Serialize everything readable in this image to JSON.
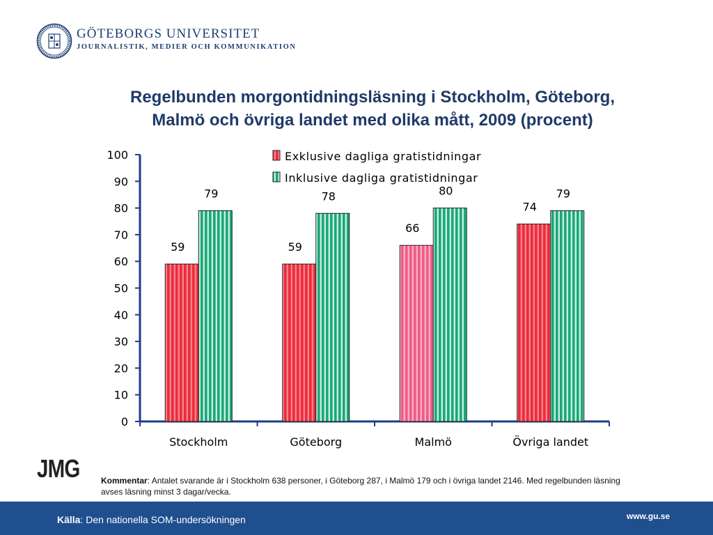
{
  "header": {
    "university": "GÖTEBORGS UNIVERSITET",
    "department": "JOURNALISTIK, MEDIER OCH KOMMUNIKATION",
    "logo_icon": "university-seal-icon"
  },
  "title_line1": "Regelbunden morgontidningsläsning i Stockholm, Göteborg,",
  "title_line2": "Malmö och övriga landet med olika mått, 2009 (procent)",
  "chart_data": {
    "type": "bar",
    "categories": [
      "Stockholm",
      "Göteborg",
      "Malmö",
      "Övriga landet"
    ],
    "series": [
      {
        "name": "Exklusive dagliga gratistidningar",
        "values": [
          59,
          59,
          66,
          74
        ],
        "color": "#ee2a3a"
      },
      {
        "name": "Inklusive dagliga gratistidningar",
        "values": [
          79,
          78,
          80,
          79
        ],
        "color": "#1aa87a"
      }
    ],
    "title": "",
    "xlabel": "",
    "ylabel": "",
    "ylim": [
      0,
      100
    ],
    "yticks": [
      "0",
      "10",
      "20",
      "30",
      "40",
      "50",
      "60",
      "70",
      "80",
      "90",
      "100"
    ],
    "grid": false,
    "legend_position": "top-right",
    "data_labels": true
  },
  "jmg_logo": "JMG",
  "comment": {
    "label": "Kommentar",
    "text": ": Antalet svarande är i Stockholm 638 personer, i Göteborg 287, i Malmö 179 och i övriga landet 2146. Med regelbunden läsning avses läsning minst 3 dagar/vecka."
  },
  "footer": {
    "source_label": "Källa",
    "source_text": ": Den nationella SOM-undersökningen",
    "website": "www.gu.se",
    "background": "#1f4f8e"
  }
}
